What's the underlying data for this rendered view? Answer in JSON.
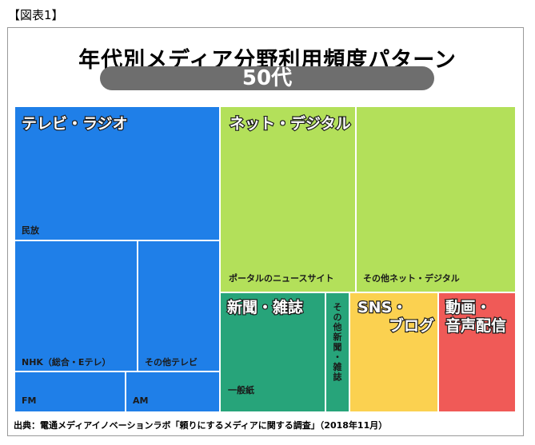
{
  "figure_label": "【図表1】",
  "title": "年代別メディア分野利用頻度パターン",
  "age_label": "50代",
  "source": "出典：電通メディアイノベーションラボ「頼りにするメディアに関する調査」（2018年11月）",
  "chart_data": {
    "type": "treemap",
    "groups": [
      {
        "name": "テレビ・ラジオ",
        "color": "#1f7fe8",
        "items": [
          "民放",
          "NHK（総合・Eテレ）",
          "その他テレビ",
          "FM",
          "AM"
        ]
      },
      {
        "name": "ネット・デジタル",
        "color": "#b3e05a",
        "items": [
          "ポータルのニュースサイト",
          "その他ネット・デジタル"
        ]
      },
      {
        "name": "新聞・雑誌",
        "color": "#27a47a",
        "items": [
          "一般紙",
          "その他新聞・雑誌"
        ]
      },
      {
        "name": "SNS・ブログ",
        "color": "#fbd150",
        "items": []
      },
      {
        "name": "動画・音声配信",
        "color": "#f05a57",
        "items": []
      }
    ]
  }
}
